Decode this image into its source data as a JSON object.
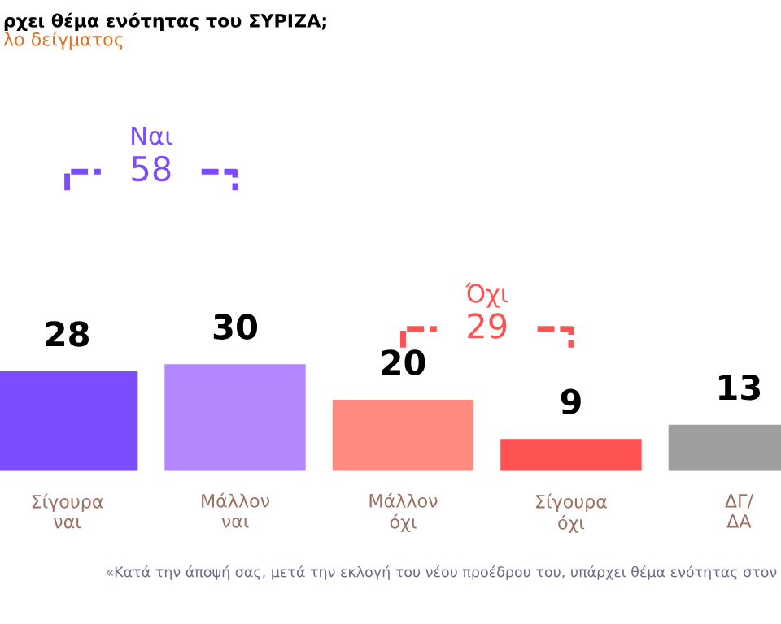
{
  "chart_data": {
    "type": "bar",
    "title": "ρχει θέμα ενότητας του ΣΥΡΙΖΑ;",
    "subtitle": "λο δείγματος",
    "categories": [
      "Σίγουρα\nναι",
      "Μάλλον\nναι",
      "Μάλλον\nόχι",
      "Σίγουρα\nόχι",
      "ΔΓ/\nΔΑ"
    ],
    "values": [
      28,
      30,
      20,
      9,
      13
    ],
    "colors": [
      "#7b4dff",
      "#b388ff",
      "#ff8a80",
      "#ff5252",
      "#9e9e9e"
    ],
    "data_labels": true,
    "grid": false,
    "legend": false,
    "annotations": [
      "Ναι",
      "58",
      "Όχι",
      "29",
      "«Κατά την άποψή σας, μετά την εκλογή του νέου προέδρου του, υπάρχει θέμα ενότητας στον"
    ]
  }
}
